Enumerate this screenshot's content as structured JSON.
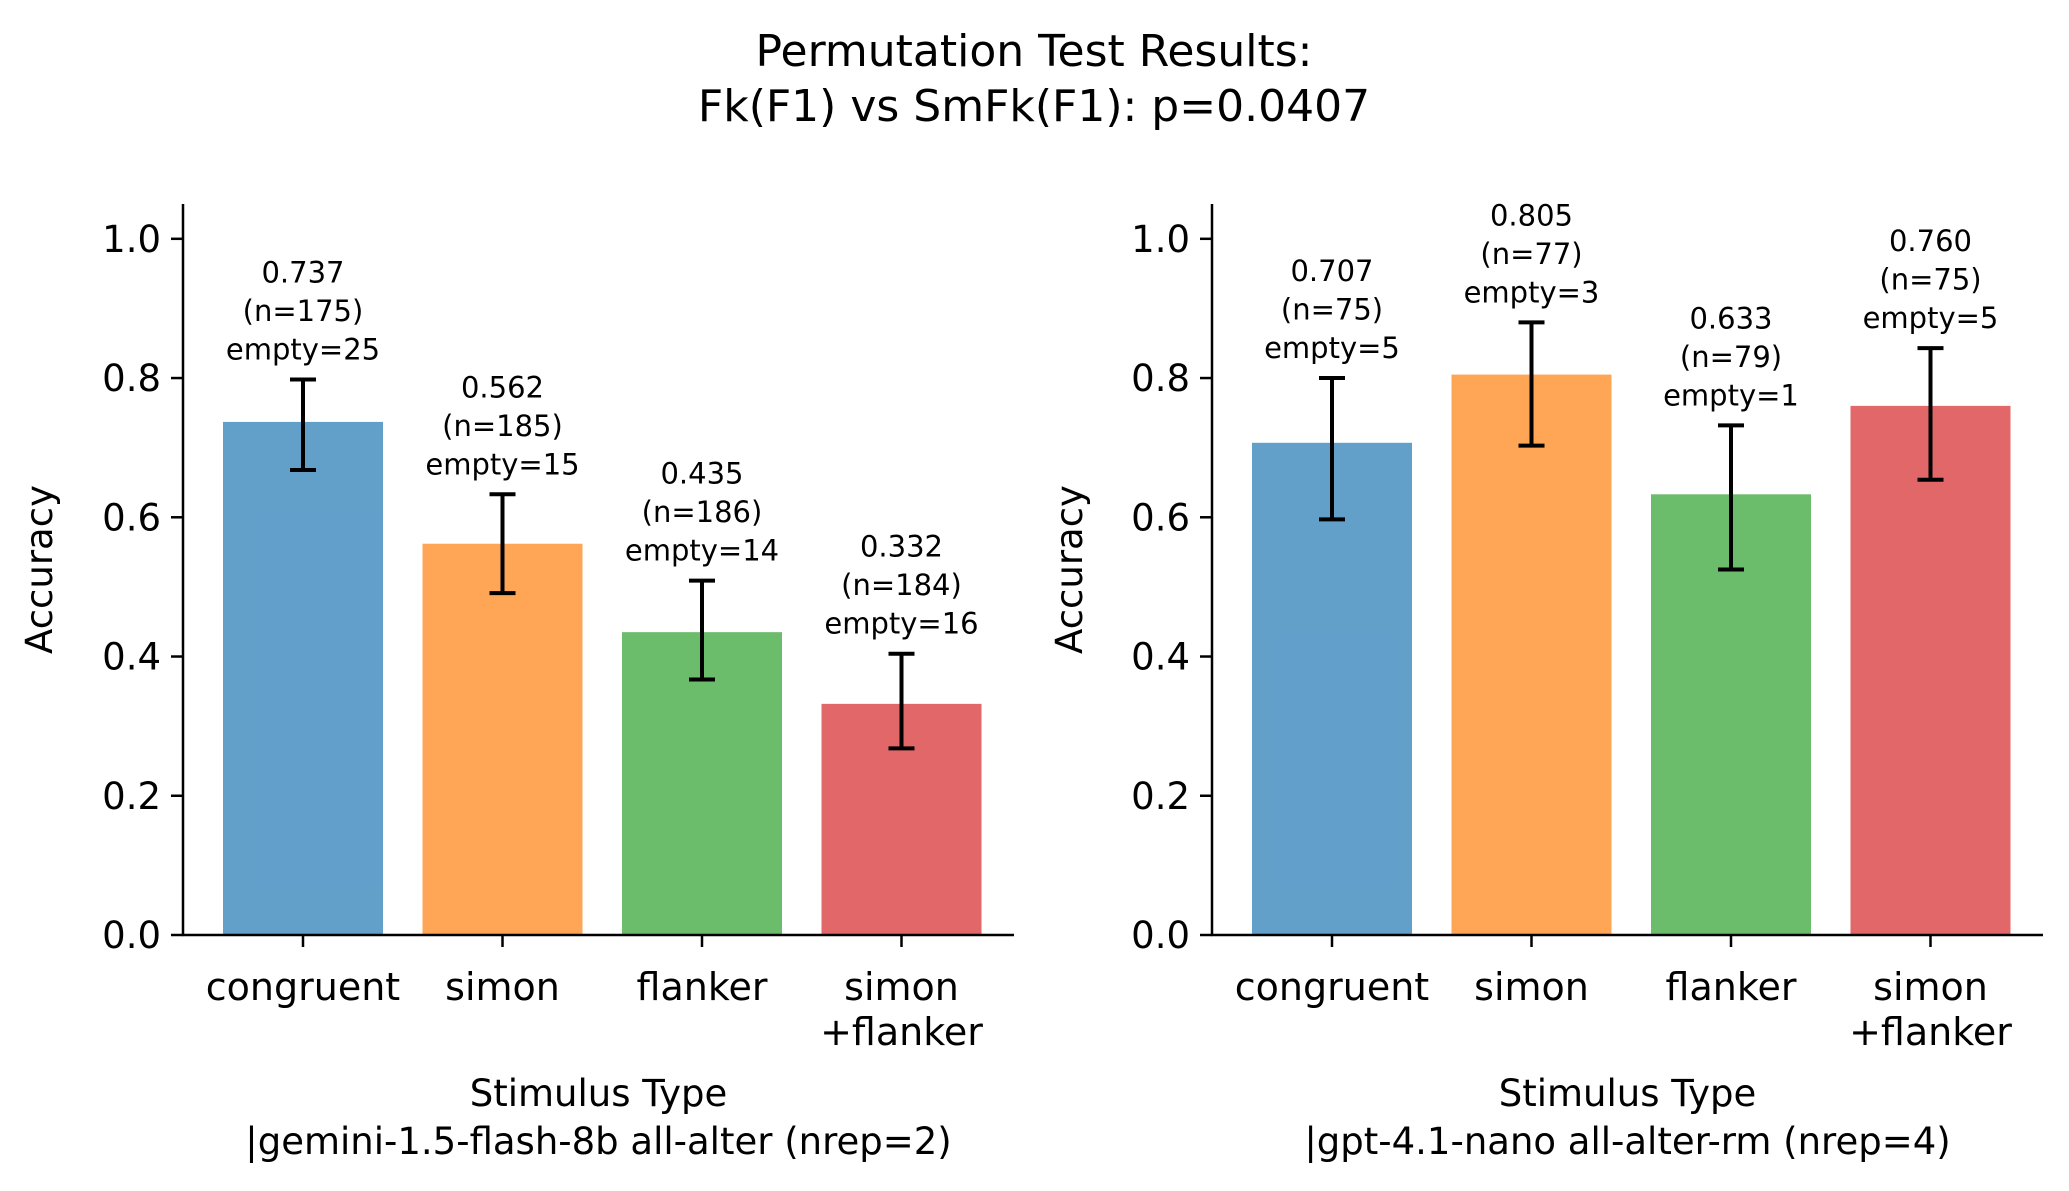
{
  "suptitle": [
    "Permutation Test Results:",
    "Fk(F1) vs SmFk(F1): p=0.0407"
  ],
  "colors": {
    "congruent": "#1f77b4",
    "simon": "#ff7f0e",
    "flanker": "#2ca02c",
    "simon+flanker": "#d62728",
    "bar_opacity": 0.7,
    "errorbar": "#000000"
  },
  "chart_data": [
    {
      "type": "bar",
      "categories": [
        [
          "congruent"
        ],
        [
          "simon"
        ],
        [
          "flanker"
        ],
        [
          "simon",
          "+flanker"
        ]
      ],
      "values": [
        0.737,
        0.562,
        0.435,
        0.332
      ],
      "ci_low": [
        0.668,
        0.491,
        0.367,
        0.268
      ],
      "ci_high": [
        0.798,
        0.633,
        0.509,
        0.404
      ],
      "annotations": [
        [
          "0.737",
          "(n=175)",
          "empty=25"
        ],
        [
          "0.562",
          "(n=185)",
          "empty=15"
        ],
        [
          "0.435",
          "(n=186)",
          "empty=14"
        ],
        [
          "0.332",
          "(n=184)",
          "empty=16"
        ]
      ],
      "xlabel": [
        "Stimulus Type",
        "|gemini-1.5-flash-8b all-alter (nrep=2)"
      ],
      "ylabel": "Accuracy",
      "ylim": [
        0,
        1.05
      ],
      "yticks": [
        "0.0",
        "0.2",
        "0.4",
        "0.6",
        "0.8",
        "1.0"
      ],
      "grid": false
    },
    {
      "type": "bar",
      "categories": [
        [
          "congruent"
        ],
        [
          "simon"
        ],
        [
          "flanker"
        ],
        [
          "simon",
          "+flanker"
        ]
      ],
      "values": [
        0.707,
        0.805,
        0.633,
        0.76
      ],
      "ci_low": [
        0.597,
        0.703,
        0.525,
        0.654
      ],
      "ci_high": [
        0.8,
        0.88,
        0.732,
        0.843
      ],
      "annotations": [
        [
          "0.707",
          "(n=75)",
          "empty=5"
        ],
        [
          "0.805",
          "(n=77)",
          "empty=3"
        ],
        [
          "0.633",
          "(n=79)",
          "empty=1"
        ],
        [
          "0.760",
          "(n=75)",
          "empty=5"
        ]
      ],
      "xlabel": [
        "Stimulus Type",
        "|gpt-4.1-nano all-alter-rm (nrep=4)"
      ],
      "ylabel": "Accuracy",
      "ylim": [
        0,
        1.05
      ],
      "yticks": [
        "0.0",
        "0.2",
        "0.4",
        "0.6",
        "0.8",
        "1.0"
      ],
      "grid": false
    }
  ]
}
